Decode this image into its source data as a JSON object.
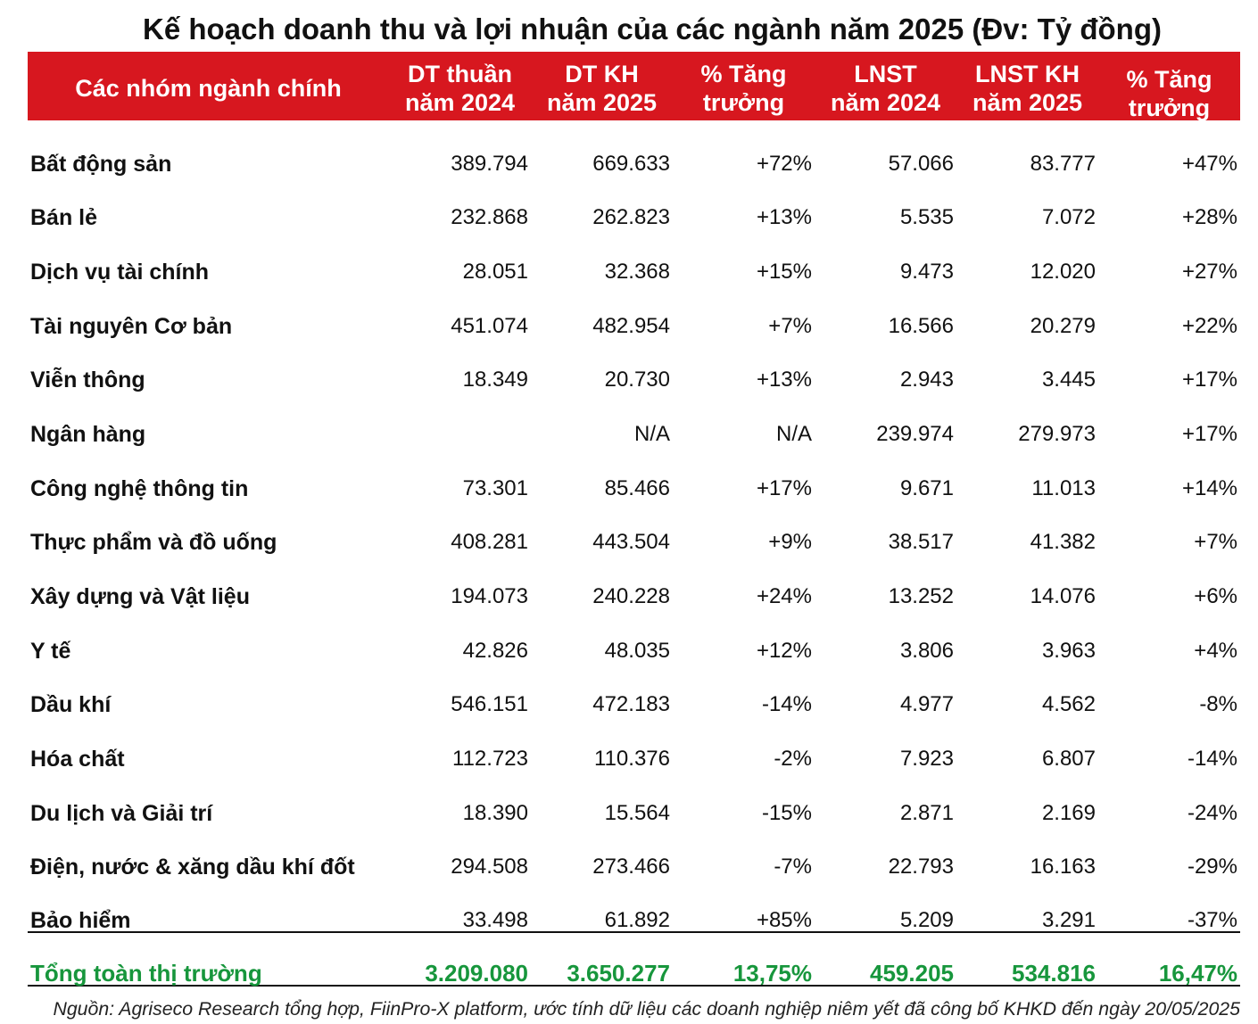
{
  "chart_data": {
    "type": "table",
    "title": "Kế hoạch doanh thu và lợi nhuận của các ngành năm 2025 (Đv: Tỷ đồng)",
    "columns": [
      {
        "line1": "Các nhóm ngành chính"
      },
      {
        "line1": "DT thuần",
        "line2": "năm 2024"
      },
      {
        "line1": "DT KH",
        "line2": "năm 2025"
      },
      {
        "line1": "% Tăng",
        "line2": "trưởng"
      },
      {
        "line1": "LNST",
        "line2": "năm 2024"
      },
      {
        "line1": "LNST KH",
        "line2": "năm 2025"
      },
      {
        "line1": "% Tăng",
        "line2": "trưởng"
      }
    ],
    "rows": [
      {
        "name": "Bất động sản",
        "values": [
          "389.794",
          "669.633",
          "+72%",
          "57.066",
          "83.777",
          "+47%"
        ]
      },
      {
        "name": "Bán lẻ",
        "values": [
          "232.868",
          "262.823",
          "+13%",
          "5.535",
          "7.072",
          "+28%"
        ]
      },
      {
        "name": "Dịch vụ tài chính",
        "values": [
          "28.051",
          "32.368",
          "+15%",
          "9.473",
          "12.020",
          "+27%"
        ]
      },
      {
        "name": "Tài nguyên Cơ bản",
        "values": [
          "451.074",
          "482.954",
          "+7%",
          "16.566",
          "20.279",
          "+22%"
        ]
      },
      {
        "name": "Viễn thông",
        "values": [
          "18.349",
          "20.730",
          "+13%",
          "2.943",
          "3.445",
          "+17%"
        ]
      },
      {
        "name": "Ngân hàng",
        "values": [
          "",
          "N/A",
          "N/A",
          "239.974",
          "279.973",
          "+17%"
        ]
      },
      {
        "name": "Công nghệ thông tin",
        "values": [
          "73.301",
          "85.466",
          "+17%",
          "9.671",
          "11.013",
          "+14%"
        ]
      },
      {
        "name": "Thực phẩm và đồ uống",
        "values": [
          "408.281",
          "443.504",
          "+9%",
          "38.517",
          "41.382",
          "+7%"
        ]
      },
      {
        "name": "Xây dựng và Vật liệu",
        "values": [
          "194.073",
          "240.228",
          "+24%",
          "13.252",
          "14.076",
          "+6%"
        ]
      },
      {
        "name": "Y tế",
        "values": [
          "42.826",
          "48.035",
          "+12%",
          "3.806",
          "3.963",
          "+4%"
        ]
      },
      {
        "name": "Dầu khí",
        "values": [
          "546.151",
          "472.183",
          "-14%",
          "4.977",
          "4.562",
          "-8%"
        ]
      },
      {
        "name": "Hóa chất",
        "values": [
          "112.723",
          "110.376",
          "-2%",
          "7.923",
          "6.807",
          "-14%"
        ]
      },
      {
        "name": "Du lịch và Giải trí",
        "values": [
          "18.390",
          "15.564",
          "-15%",
          "2.871",
          "2.169",
          "-24%"
        ]
      },
      {
        "name": "Điện, nước & xăng dầu khí đốt",
        "values": [
          "294.508",
          "273.466",
          "-7%",
          "22.793",
          "16.163",
          "-29%"
        ]
      },
      {
        "name": "Bảo hiểm",
        "values": [
          "33.498",
          "61.892",
          "+85%",
          "5.209",
          "3.291",
          "-37%"
        ]
      }
    ],
    "total": {
      "name": "Tổng toàn thị trường",
      "values": [
        "3.209.080",
        "3.650.277",
        "13,75%",
        "459.205",
        "534.816",
        "16,47%"
      ]
    },
    "source": "Nguồn: Agriseco Research tổng hợp, FiinPro-X platform, ước tính dữ liệu các doanh nghiệp niêm yết đã công bố KHKD đến ngày 20/05/2025"
  },
  "colors": {
    "header_bg": "#d7171f",
    "header_text": "#ffffff",
    "total_text": "#17963c",
    "rule": "#111111"
  }
}
